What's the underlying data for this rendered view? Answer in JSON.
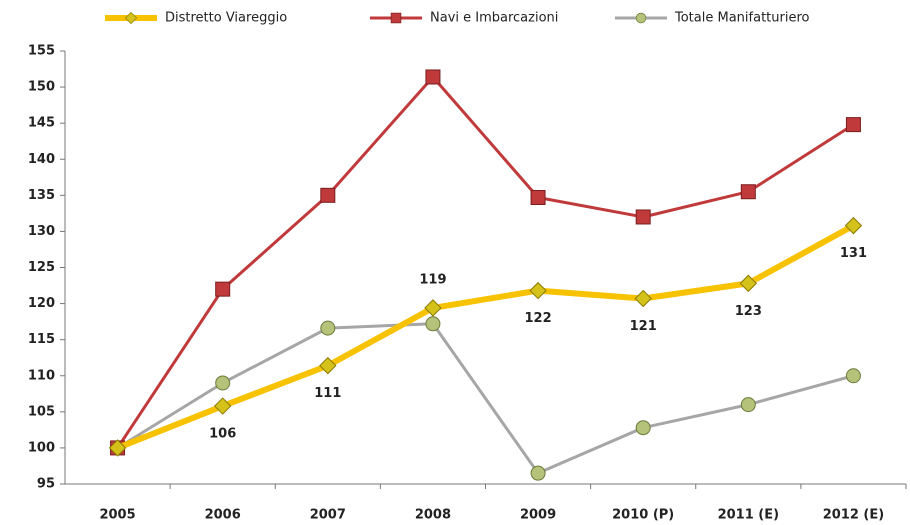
{
  "chart_data": {
    "type": "line",
    "categories": [
      "2005",
      "2006",
      "2007",
      "2008",
      "2009",
      "2010 (P)",
      "2011 (E)",
      "2012 (E)"
    ],
    "series": [
      {
        "name": "Distretto Viareggio",
        "color": "#f7c200",
        "marker": "diamond",
        "values": [
          100,
          105.8,
          111.4,
          119.4,
          121.8,
          120.7,
          122.8,
          130.8
        ],
        "value_labels": [
          null,
          "106",
          "111",
          "119",
          "122",
          "121",
          "123",
          "131"
        ]
      },
      {
        "name": "Navi e Imbarcazioni",
        "color": "#c0393b",
        "marker": "square",
        "values": [
          100,
          122,
          135,
          151.4,
          134.7,
          132,
          135.5,
          144.8
        ]
      },
      {
        "name": "Totale Manifatturiero",
        "color": "#a6a6a6",
        "marker": "circle",
        "values": [
          100,
          109,
          116.6,
          117.2,
          96.5,
          102.8,
          106,
          110
        ]
      }
    ],
    "ylim": [
      95,
      155
    ],
    "yticks": [
      95,
      100,
      105,
      110,
      115,
      120,
      125,
      130,
      135,
      140,
      145,
      150,
      155
    ],
    "grid": false,
    "legend": "top"
  }
}
